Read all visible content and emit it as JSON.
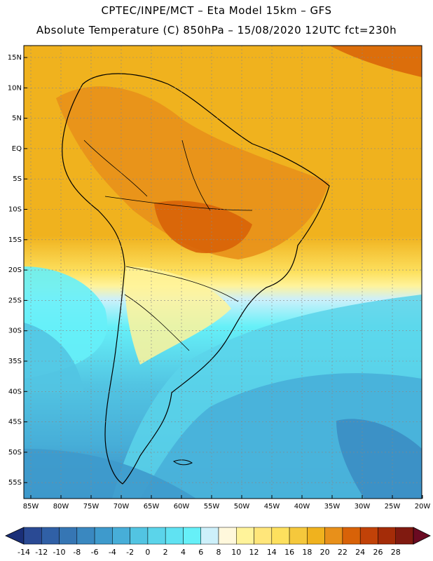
{
  "header": {
    "line1": "CPTEC/INPE/MCT –  Eta Model 15km – GFS",
    "line2": "Absolute Temperature (C) 850hPa – 15/08/2020 12UTC fct=230h"
  },
  "map": {
    "lat_labels": [
      "15N",
      "10N",
      "5N",
      "EQ",
      "5S",
      "10S",
      "15S",
      "20S",
      "25S",
      "30S",
      "35S",
      "40S",
      "45S",
      "50S",
      "55S"
    ],
    "lon_labels": [
      "85W",
      "80W",
      "75W",
      "70W",
      "65W",
      "60W",
      "55W",
      "50W",
      "45W",
      "40W",
      "35W",
      "30W",
      "25W",
      "20W"
    ]
  },
  "colorbar": {
    "labels": [
      "-14",
      "-12",
      "-10",
      "-8",
      "-6",
      "-4",
      "-2",
      "0",
      "2",
      "4",
      "6",
      "8",
      "10",
      "12",
      "14",
      "16",
      "18",
      "20",
      "22",
      "24",
      "26",
      "28"
    ],
    "colors": {
      "under": "#1a2f78",
      "over": "#6a0a22",
      "bins": [
        "#2a4a94",
        "#3060a6",
        "#3676b4",
        "#3a88c0",
        "#3e9acc",
        "#47aed8",
        "#52c4e2",
        "#5bd4ea",
        "#60e2f2",
        "#66f0f8",
        "#cdf0fa",
        "#fff8dc",
        "#fff39a",
        "#ffe67a",
        "#fde05e",
        "#f5c83c",
        "#f0b21e",
        "#e8901a",
        "#d86208",
        "#c14208",
        "#a42c08",
        "#801a10"
      ]
    }
  }
}
